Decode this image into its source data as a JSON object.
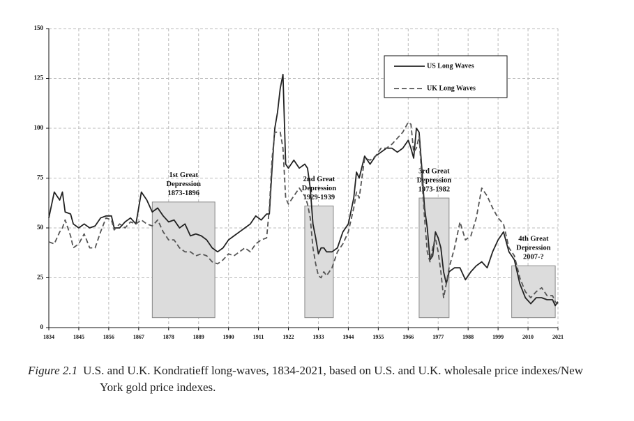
{
  "chart_data": {
    "type": "line",
    "x": [
      1834,
      1836,
      1838,
      1839,
      1840,
      1842,
      1843,
      1845,
      1847,
      1849,
      1851,
      1853,
      1855,
      1857,
      1858,
      1860,
      1862,
      1864,
      1866,
      1868,
      1870,
      1872,
      1874,
      1876,
      1878,
      1880,
      1882,
      1884,
      1886,
      1888,
      1890,
      1892,
      1894,
      1896,
      1898,
      1900,
      1902,
      1904,
      1906,
      1908,
      1910,
      1912,
      1914,
      1915,
      1916,
      1917,
      1918,
      1919,
      1920,
      1921,
      1922,
      1924,
      1926,
      1928,
      1929,
      1930,
      1931,
      1932,
      1933,
      1934,
      1935,
      1936,
      1938,
      1940,
      1942,
      1944,
      1946,
      1947,
      1948,
      1950,
      1952,
      1954,
      1956,
      1958,
      1960,
      1962,
      1964,
      1966,
      1967,
      1968,
      1969,
      1970,
      1971,
      1972,
      1973,
      1974,
      1975,
      1976,
      1977,
      1978,
      1979,
      1980,
      1981,
      1983,
      1985,
      1987,
      1989,
      1991,
      1993,
      1995,
      1997,
      1999,
      2001,
      2003,
      2005,
      2007,
      2009,
      2011,
      2013,
      2015,
      2017,
      2019,
      2020,
      2021
    ],
    "series": [
      {
        "name": "US Long Waves",
        "color": "#222222",
        "dash": "solid",
        "values": [
          55,
          68,
          64,
          68,
          58,
          57,
          52,
          50,
          52,
          50,
          51,
          55,
          56,
          56,
          50,
          50,
          53,
          55,
          52,
          68,
          64,
          58,
          60,
          56,
          53,
          54,
          50,
          52,
          46,
          47,
          46,
          44,
          40,
          38,
          40,
          44,
          46,
          48,
          50,
          52,
          56,
          54,
          57,
          57,
          80,
          100,
          108,
          120,
          127,
          82,
          80,
          84,
          80,
          82,
          80,
          70,
          52,
          45,
          37,
          40,
          40,
          38,
          38,
          40,
          48,
          52,
          65,
          78,
          75,
          86,
          82,
          86,
          88,
          90,
          90,
          88,
          90,
          94,
          90,
          85,
          100,
          98,
          80,
          60,
          50,
          34,
          36,
          48,
          45,
          40,
          28,
          22,
          28,
          30,
          30,
          24,
          28,
          31,
          33,
          30,
          38,
          44,
          48,
          38,
          34,
          22,
          15,
          12,
          15,
          15,
          14,
          14,
          11,
          13
        ]
      },
      {
        "name": "UK Long Waves",
        "color": "#555555",
        "dash": "dashed",
        "values": [
          43,
          42,
          48,
          50,
          54,
          46,
          40,
          42,
          47,
          40,
          40,
          48,
          55,
          54,
          49,
          52,
          50,
          53,
          52,
          54,
          52,
          51,
          54,
          48,
          44,
          44,
          40,
          38,
          38,
          36,
          37,
          36,
          33,
          32,
          34,
          37,
          36,
          38,
          40,
          38,
          42,
          44,
          45,
          60,
          85,
          98,
          98,
          98,
          90,
          65,
          62,
          66,
          70,
          66,
          62,
          55,
          40,
          32,
          26,
          25,
          28,
          26,
          30,
          38,
          42,
          48,
          60,
          68,
          65,
          85,
          84,
          86,
          90,
          90,
          92,
          95,
          98,
          103,
          102,
          88,
          90,
          96,
          75,
          55,
          38,
          33,
          40,
          45,
          38,
          28,
          15,
          22,
          30,
          40,
          53,
          44,
          46,
          55,
          70,
          66,
          60,
          55,
          52,
          40,
          36,
          25,
          18,
          15,
          18,
          20,
          16,
          16,
          13,
          12
        ]
      }
    ],
    "xlim": [
      1834,
      2021
    ],
    "xticks": [
      1834,
      1845,
      1856,
      1867,
      1878,
      1889,
      1900,
      1911,
      1922,
      1933,
      1944,
      1955,
      1966,
      1977,
      1988,
      1999,
      2010,
      2021
    ],
    "ylim": [
      0,
      150
    ],
    "yticks": [
      0,
      25,
      50,
      75,
      100,
      125,
      150
    ],
    "grid": true,
    "legend": "upper right",
    "shaded_regions": [
      {
        "label": [
          "1st Great",
          "Depression",
          "1873-1896"
        ],
        "x": [
          1872,
          1895
        ],
        "y": [
          5,
          63
        ]
      },
      {
        "label": [
          "2nd Great",
          "Depression",
          "1929-1939"
        ],
        "x": [
          1928,
          1938.5
        ],
        "y": [
          5,
          61
        ]
      },
      {
        "label": [
          "3rd Great",
          "Depression",
          "1973-1982"
        ],
        "x": [
          1970,
          1981
        ],
        "y": [
          5,
          65
        ]
      },
      {
        "label": [
          "4th Great",
          "Depression",
          "2007-?"
        ],
        "x": [
          2004,
          2020
        ],
        "y": [
          5,
          31
        ]
      }
    ],
    "caption_label": "Figure 2.1",
    "caption": "U.S. and U.K. Kondratieff long-waves, 1834-2021, based on U.S. and U.K. wholesale price indexes/New York gold price indexes."
  }
}
